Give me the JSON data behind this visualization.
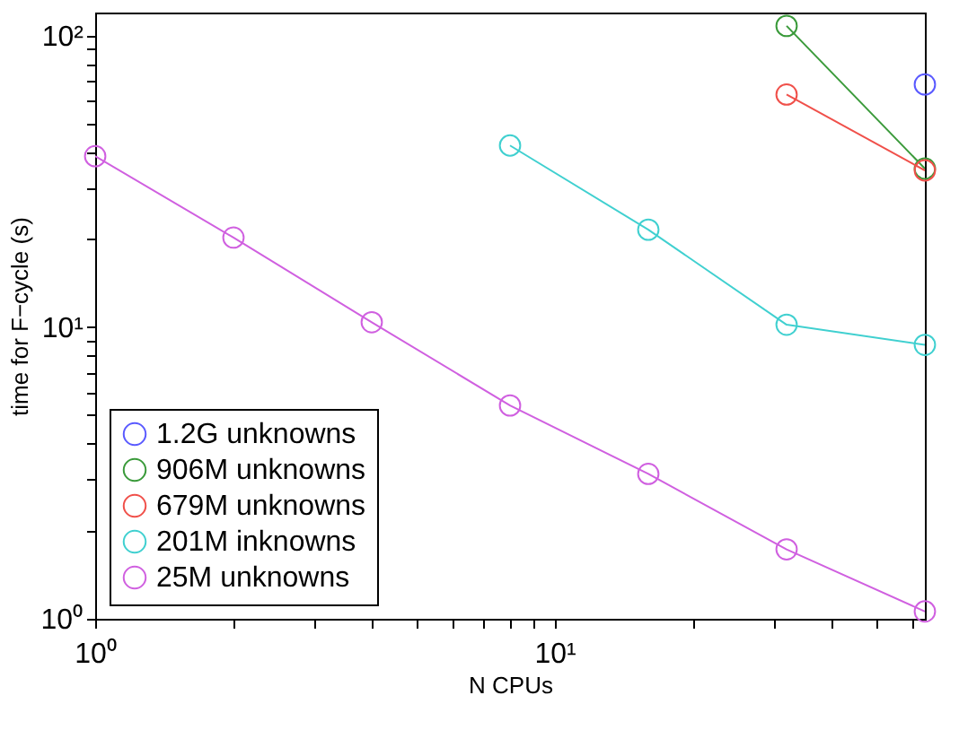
{
  "chart_data": {
    "type": "line",
    "xlabel": "N CPUs",
    "ylabel": "time for F−cycle (s)",
    "log": "xy",
    "grid": false,
    "legend": "bottom left",
    "marker": "circle",
    "line_style": "solid",
    "xlim": [
      1,
      64
    ],
    "ylim": [
      1,
      120
    ],
    "xticks": [
      {
        "value": 1,
        "label": "10⁰"
      },
      {
        "value": 2,
        "label": null
      },
      {
        "value": 3,
        "label": null
      },
      {
        "value": 4,
        "label": null
      },
      {
        "value": 5,
        "label": null
      },
      {
        "value": 6,
        "label": null
      },
      {
        "value": 7,
        "label": null
      },
      {
        "value": 8,
        "label": null
      },
      {
        "value": 9,
        "label": null
      },
      {
        "value": 10,
        "label": "10¹"
      },
      {
        "value": 20,
        "label": null
      },
      {
        "value": 30,
        "label": null
      },
      {
        "value": 40,
        "label": null
      },
      {
        "value": 50,
        "label": null
      },
      {
        "value": 60,
        "label": null
      }
    ],
    "yticks": [
      {
        "value": 1,
        "label": "10⁰"
      },
      {
        "value": 2,
        "label": null
      },
      {
        "value": 3,
        "label": null
      },
      {
        "value": 4,
        "label": null
      },
      {
        "value": 5,
        "label": null
      },
      {
        "value": 6,
        "label": null
      },
      {
        "value": 7,
        "label": null
      },
      {
        "value": 8,
        "label": null
      },
      {
        "value": 9,
        "label": null
      },
      {
        "value": 10,
        "label": "10¹"
      },
      {
        "value": 20,
        "label": null
      },
      {
        "value": 30,
        "label": null
      },
      {
        "value": 40,
        "label": null
      },
      {
        "value": 50,
        "label": null
      },
      {
        "value": 60,
        "label": null
      },
      {
        "value": 70,
        "label": null
      },
      {
        "value": 80,
        "label": null
      },
      {
        "value": 90,
        "label": null
      },
      {
        "value": 100,
        "label": "10²"
      }
    ],
    "series": [
      {
        "name": "1.2G unknowns",
        "type": "scatter",
        "color": "#5a5aff",
        "x": [
          64
        ],
        "values": [
          68
        ]
      },
      {
        "name": "906M unknowns",
        "color": "#3a9a3a",
        "x": [
          32,
          64
        ],
        "values": [
          108,
          35
        ]
      },
      {
        "name": "679M unknowns",
        "color": "#f0504a",
        "x": [
          32,
          64
        ],
        "values": [
          62.8,
          34.5
        ]
      },
      {
        "name": "201M inknowns",
        "color": "#40d0d0",
        "x": [
          8,
          16,
          32,
          64
        ],
        "values": [
          42,
          21.6,
          10.2,
          8.7
        ]
      },
      {
        "name": "25M unknowns",
        "color": "#d060e0",
        "x": [
          1,
          2,
          4,
          8,
          16,
          32,
          64
        ],
        "values": [
          38.6,
          20.3,
          10.4,
          5.39,
          3.14,
          1.73,
          1.06
        ]
      }
    ]
  }
}
